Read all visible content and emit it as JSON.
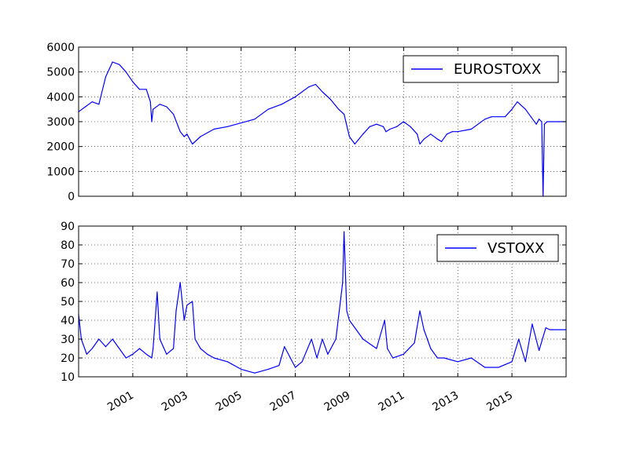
{
  "colors": {
    "line": "#0000ff",
    "axes": "#000000",
    "grid": "#000000",
    "background": "#ffffff"
  },
  "chart_data": [
    {
      "type": "line",
      "series": [
        {
          "name": "EUROSTOXX",
          "x": [
            1999.0,
            1999.25,
            1999.5,
            1999.75,
            2000.0,
            2000.25,
            2000.5,
            2000.75,
            2001.0,
            2001.25,
            2001.5,
            2001.65,
            2001.7,
            2001.75,
            2002.0,
            2002.25,
            2002.5,
            2002.75,
            2002.9,
            2003.0,
            2003.1,
            2003.2,
            2003.5,
            2004.0,
            2004.5,
            2005.0,
            2005.5,
            2006.0,
            2006.5,
            2007.0,
            2007.25,
            2007.5,
            2007.75,
            2008.0,
            2008.3,
            2008.6,
            2008.8,
            2009.0,
            2009.2,
            2009.5,
            2009.75,
            2010.0,
            2010.25,
            2010.35,
            2010.5,
            2010.75,
            2011.0,
            2011.25,
            2011.5,
            2011.6,
            2011.75,
            2012.0,
            2012.25,
            2012.4,
            2012.6,
            2012.8,
            2013.0,
            2013.5,
            2014.0,
            2014.25,
            2014.5,
            2014.75,
            2015.0,
            2015.2,
            2015.5,
            2015.7,
            2015.9,
            2016.0,
            2016.1,
            2016.15,
            2016.2,
            2016.3,
            2016.5,
            2016.75,
            2017.0
          ],
          "values": [
            3400,
            3600,
            3800,
            3700,
            4800,
            5400,
            5300,
            5000,
            4600,
            4300,
            4300,
            3800,
            3000,
            3500,
            3700,
            3600,
            3300,
            2600,
            2400,
            2500,
            2300,
            2100,
            2400,
            2700,
            2800,
            2950,
            3100,
            3500,
            3700,
            4000,
            4200,
            4400,
            4500,
            4200,
            3900,
            3500,
            3300,
            2400,
            2100,
            2500,
            2800,
            2900,
            2800,
            2600,
            2700,
            2800,
            3000,
            2800,
            2500,
            2100,
            2300,
            2500,
            2300,
            2200,
            2500,
            2600,
            2600,
            2700,
            3100,
            3200,
            3200,
            3200,
            3500,
            3800,
            3500,
            3200,
            2900,
            3100,
            3000,
            0,
            2900,
            3000,
            3000,
            3000,
            3000
          ]
        }
      ],
      "ylim": [
        0,
        6000
      ],
      "yticks": [
        "0",
        "1000",
        "2000",
        "3000",
        "4000",
        "5000",
        "6000"
      ],
      "xlim": [
        1999.0,
        2017.0
      ],
      "legend": "top-right",
      "grid": true
    },
    {
      "type": "line",
      "series": [
        {
          "name": "VSTOXX",
          "x": [
            1999.0,
            1999.1,
            1999.3,
            1999.5,
            1999.75,
            2000.0,
            2000.25,
            2000.5,
            2000.75,
            2001.0,
            2001.25,
            2001.5,
            2001.7,
            2001.75,
            2001.9,
            2002.0,
            2002.25,
            2002.5,
            2002.6,
            2002.75,
            2002.9,
            2003.0,
            2003.2,
            2003.3,
            2003.5,
            2003.75,
            2004.0,
            2004.5,
            2005.0,
            2005.5,
            2006.0,
            2006.4,
            2006.6,
            2007.0,
            2007.25,
            2007.6,
            2007.8,
            2008.0,
            2008.2,
            2008.5,
            2008.75,
            2008.8,
            2008.9,
            2009.0,
            2009.25,
            2009.5,
            2010.0,
            2010.3,
            2010.4,
            2010.6,
            2011.0,
            2011.4,
            2011.6,
            2011.75,
            2012.0,
            2012.25,
            2012.5,
            2013.0,
            2013.5,
            2014.0,
            2014.5,
            2015.0,
            2015.25,
            2015.5,
            2015.75,
            2016.0,
            2016.25,
            2016.4,
            2016.5,
            2017.0
          ],
          "values": [
            43,
            30,
            22,
            25,
            30,
            26,
            30,
            25,
            20,
            22,
            25,
            22,
            20,
            25,
            55,
            30,
            22,
            25,
            45,
            60,
            40,
            48,
            50,
            30,
            25,
            22,
            20,
            18,
            14,
            12,
            14,
            16,
            26,
            15,
            18,
            30,
            20,
            30,
            22,
            30,
            60,
            87,
            45,
            40,
            35,
            30,
            25,
            40,
            25,
            20,
            22,
            28,
            45,
            35,
            25,
            20,
            20,
            18,
            20,
            15,
            15,
            18,
            30,
            18,
            38,
            24,
            36,
            35,
            35,
            35
          ]
        }
      ],
      "ylim": [
        10,
        90
      ],
      "yticks": [
        "10",
        "20",
        "30",
        "40",
        "50",
        "60",
        "70",
        "80",
        "90"
      ],
      "xlim": [
        1999.0,
        2017.0
      ],
      "xticks": [
        "2001",
        "2003",
        "2005",
        "2007",
        "2009",
        "2011",
        "2013",
        "2015"
      ],
      "legend": "top-right",
      "grid": true
    }
  ]
}
